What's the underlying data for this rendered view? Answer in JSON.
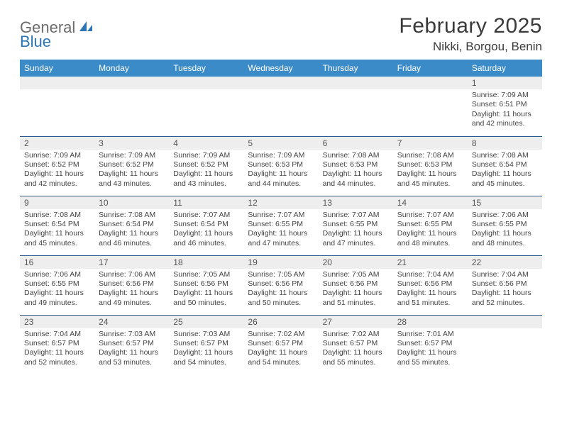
{
  "logo": {
    "part1": "General",
    "part2": "Blue"
  },
  "title": "February 2025",
  "location": "Nikki, Borgou, Benin",
  "colors": {
    "header_bg": "#3b8bc9",
    "header_text": "#ffffff",
    "row_divider": "#2e5c8a",
    "daynum_bg": "#eeeeee",
    "logo_gray": "#6b6b6b",
    "logo_blue": "#2e75b6"
  },
  "weekdays": [
    "Sunday",
    "Monday",
    "Tuesday",
    "Wednesday",
    "Thursday",
    "Friday",
    "Saturday"
  ],
  "weeks": [
    [
      {
        "n": "",
        "lines": []
      },
      {
        "n": "",
        "lines": []
      },
      {
        "n": "",
        "lines": []
      },
      {
        "n": "",
        "lines": []
      },
      {
        "n": "",
        "lines": []
      },
      {
        "n": "",
        "lines": []
      },
      {
        "n": "1",
        "lines": [
          "Sunrise: 7:09 AM",
          "Sunset: 6:51 PM",
          "Daylight: 11 hours and 42 minutes."
        ]
      }
    ],
    [
      {
        "n": "2",
        "lines": [
          "Sunrise: 7:09 AM",
          "Sunset: 6:52 PM",
          "Daylight: 11 hours and 42 minutes."
        ]
      },
      {
        "n": "3",
        "lines": [
          "Sunrise: 7:09 AM",
          "Sunset: 6:52 PM",
          "Daylight: 11 hours and 43 minutes."
        ]
      },
      {
        "n": "4",
        "lines": [
          "Sunrise: 7:09 AM",
          "Sunset: 6:52 PM",
          "Daylight: 11 hours and 43 minutes."
        ]
      },
      {
        "n": "5",
        "lines": [
          "Sunrise: 7:09 AM",
          "Sunset: 6:53 PM",
          "Daylight: 11 hours and 44 minutes."
        ]
      },
      {
        "n": "6",
        "lines": [
          "Sunrise: 7:08 AM",
          "Sunset: 6:53 PM",
          "Daylight: 11 hours and 44 minutes."
        ]
      },
      {
        "n": "7",
        "lines": [
          "Sunrise: 7:08 AM",
          "Sunset: 6:53 PM",
          "Daylight: 11 hours and 45 minutes."
        ]
      },
      {
        "n": "8",
        "lines": [
          "Sunrise: 7:08 AM",
          "Sunset: 6:54 PM",
          "Daylight: 11 hours and 45 minutes."
        ]
      }
    ],
    [
      {
        "n": "9",
        "lines": [
          "Sunrise: 7:08 AM",
          "Sunset: 6:54 PM",
          "Daylight: 11 hours and 45 minutes."
        ]
      },
      {
        "n": "10",
        "lines": [
          "Sunrise: 7:08 AM",
          "Sunset: 6:54 PM",
          "Daylight: 11 hours and 46 minutes."
        ]
      },
      {
        "n": "11",
        "lines": [
          "Sunrise: 7:07 AM",
          "Sunset: 6:54 PM",
          "Daylight: 11 hours and 46 minutes."
        ]
      },
      {
        "n": "12",
        "lines": [
          "Sunrise: 7:07 AM",
          "Sunset: 6:55 PM",
          "Daylight: 11 hours and 47 minutes."
        ]
      },
      {
        "n": "13",
        "lines": [
          "Sunrise: 7:07 AM",
          "Sunset: 6:55 PM",
          "Daylight: 11 hours and 47 minutes."
        ]
      },
      {
        "n": "14",
        "lines": [
          "Sunrise: 7:07 AM",
          "Sunset: 6:55 PM",
          "Daylight: 11 hours and 48 minutes."
        ]
      },
      {
        "n": "15",
        "lines": [
          "Sunrise: 7:06 AM",
          "Sunset: 6:55 PM",
          "Daylight: 11 hours and 48 minutes."
        ]
      }
    ],
    [
      {
        "n": "16",
        "lines": [
          "Sunrise: 7:06 AM",
          "Sunset: 6:55 PM",
          "Daylight: 11 hours and 49 minutes."
        ]
      },
      {
        "n": "17",
        "lines": [
          "Sunrise: 7:06 AM",
          "Sunset: 6:56 PM",
          "Daylight: 11 hours and 49 minutes."
        ]
      },
      {
        "n": "18",
        "lines": [
          "Sunrise: 7:05 AM",
          "Sunset: 6:56 PM",
          "Daylight: 11 hours and 50 minutes."
        ]
      },
      {
        "n": "19",
        "lines": [
          "Sunrise: 7:05 AM",
          "Sunset: 6:56 PM",
          "Daylight: 11 hours and 50 minutes."
        ]
      },
      {
        "n": "20",
        "lines": [
          "Sunrise: 7:05 AM",
          "Sunset: 6:56 PM",
          "Daylight: 11 hours and 51 minutes."
        ]
      },
      {
        "n": "21",
        "lines": [
          "Sunrise: 7:04 AM",
          "Sunset: 6:56 PM",
          "Daylight: 11 hours and 51 minutes."
        ]
      },
      {
        "n": "22",
        "lines": [
          "Sunrise: 7:04 AM",
          "Sunset: 6:56 PM",
          "Daylight: 11 hours and 52 minutes."
        ]
      }
    ],
    [
      {
        "n": "23",
        "lines": [
          "Sunrise: 7:04 AM",
          "Sunset: 6:57 PM",
          "Daylight: 11 hours and 52 minutes."
        ]
      },
      {
        "n": "24",
        "lines": [
          "Sunrise: 7:03 AM",
          "Sunset: 6:57 PM",
          "Daylight: 11 hours and 53 minutes."
        ]
      },
      {
        "n": "25",
        "lines": [
          "Sunrise: 7:03 AM",
          "Sunset: 6:57 PM",
          "Daylight: 11 hours and 54 minutes."
        ]
      },
      {
        "n": "26",
        "lines": [
          "Sunrise: 7:02 AM",
          "Sunset: 6:57 PM",
          "Daylight: 11 hours and 54 minutes."
        ]
      },
      {
        "n": "27",
        "lines": [
          "Sunrise: 7:02 AM",
          "Sunset: 6:57 PM",
          "Daylight: 11 hours and 55 minutes."
        ]
      },
      {
        "n": "28",
        "lines": [
          "Sunrise: 7:01 AM",
          "Sunset: 6:57 PM",
          "Daylight: 11 hours and 55 minutes."
        ]
      },
      {
        "n": "",
        "lines": []
      }
    ]
  ]
}
